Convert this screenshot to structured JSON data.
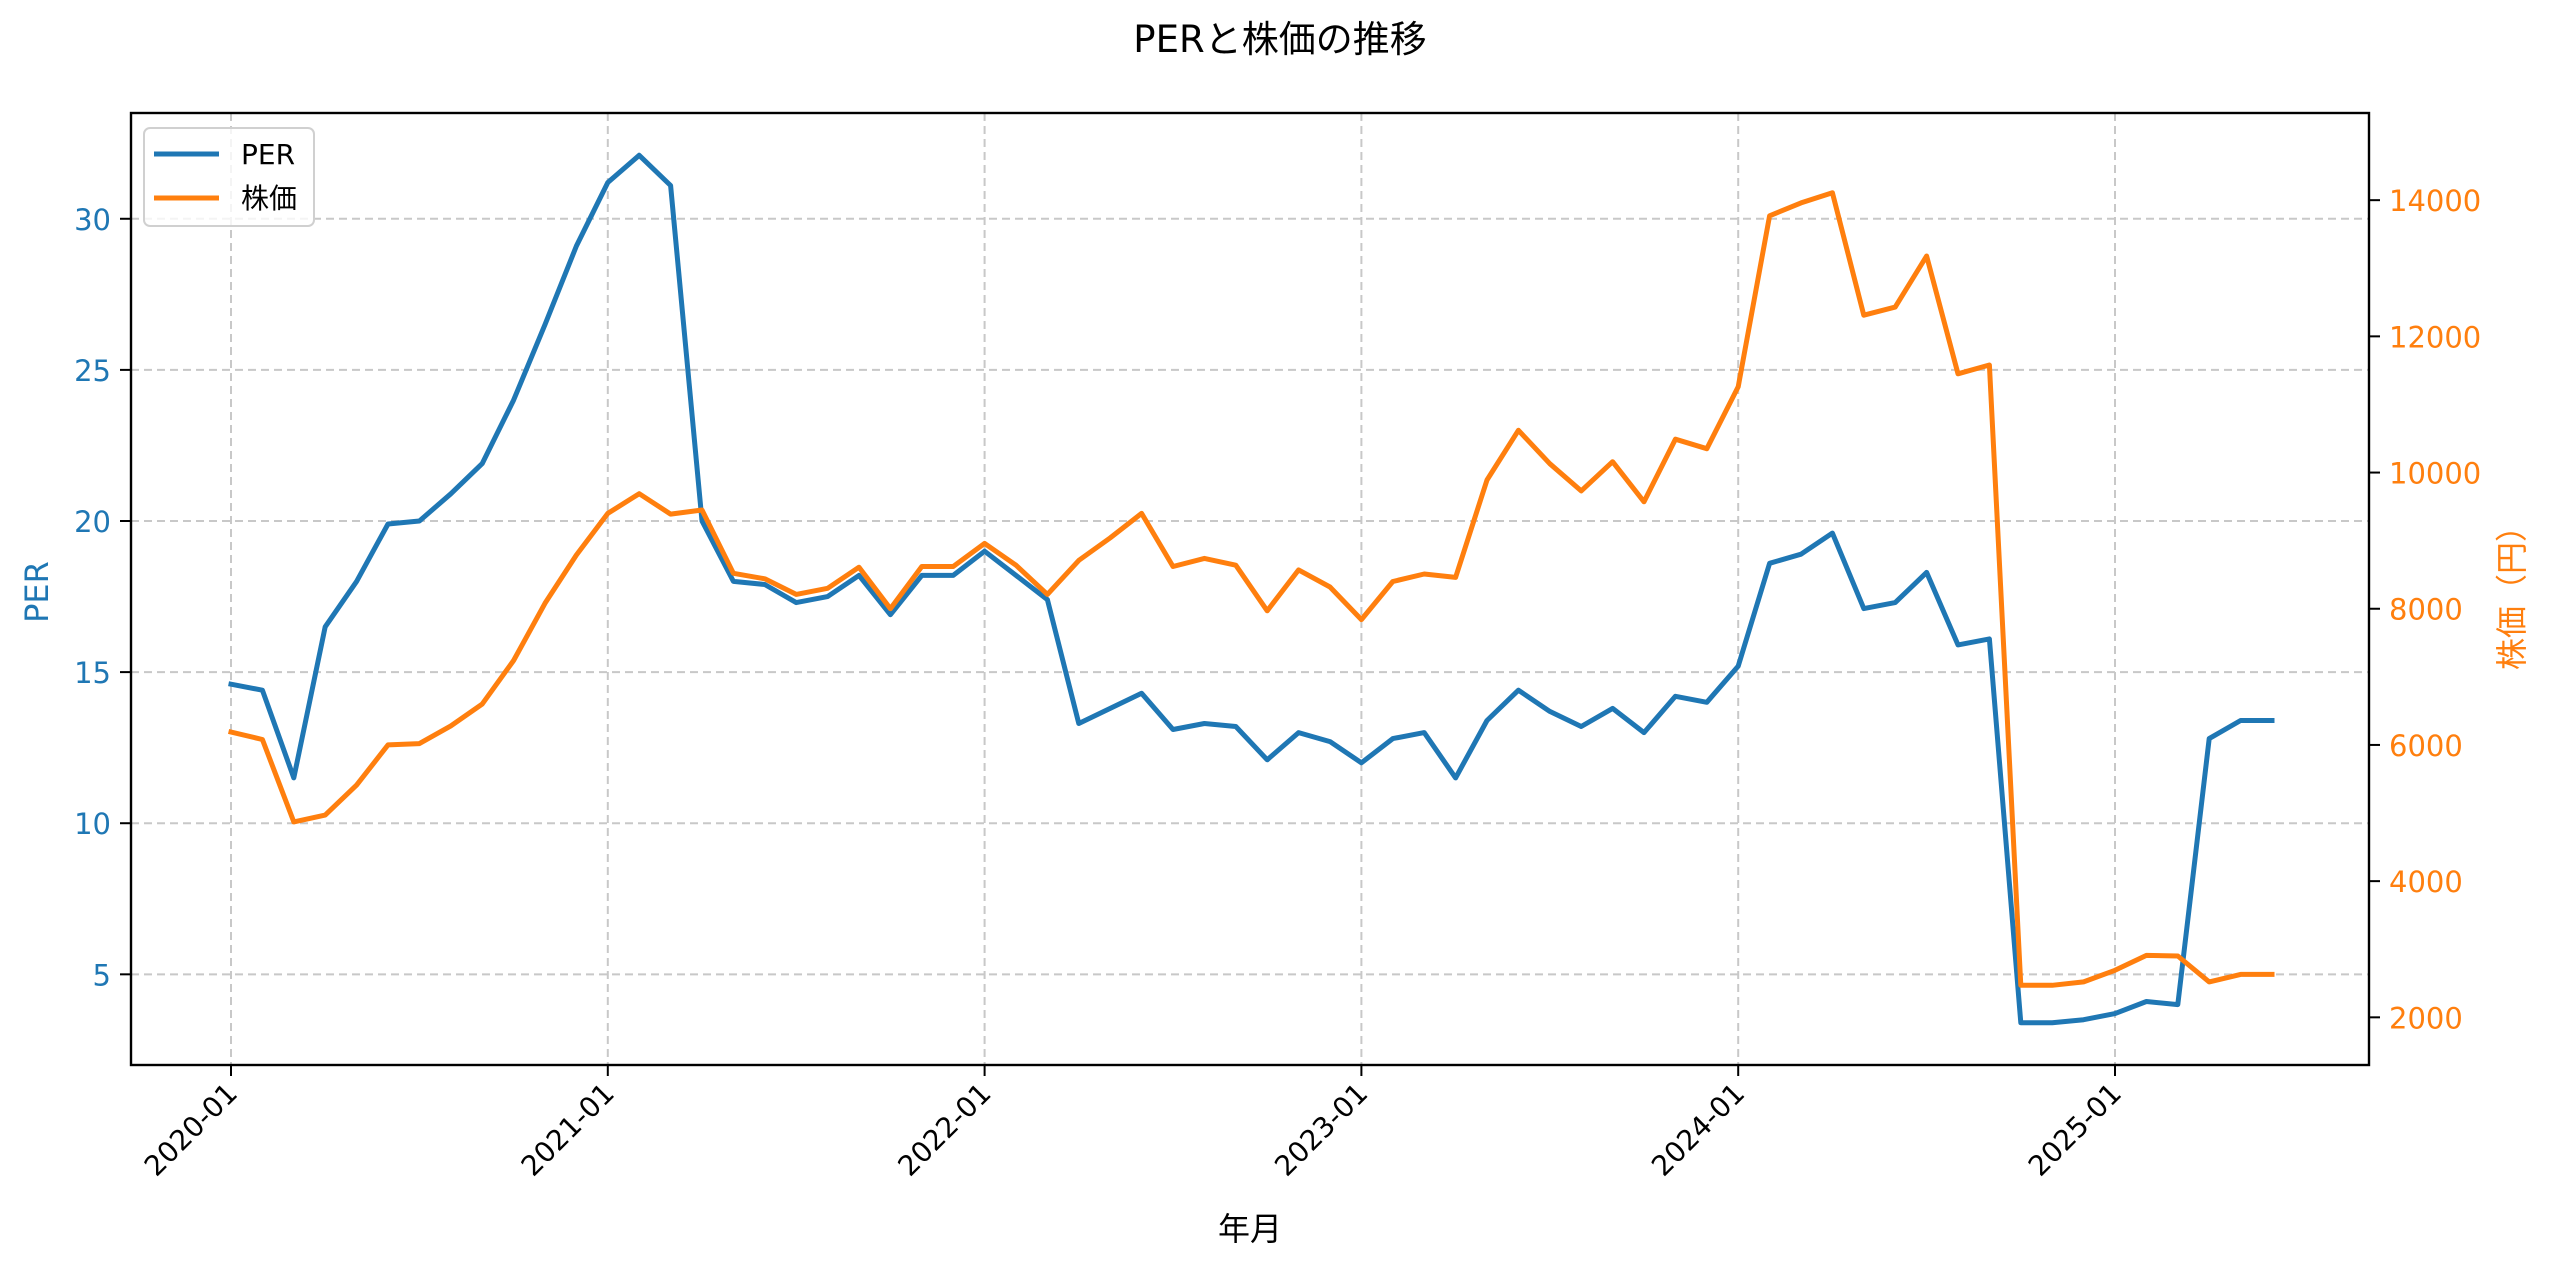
{
  "chart_data": {
    "type": "line",
    "title": "PERと株価の推移",
    "xlabel": "年月",
    "ylabel": "PER",
    "ylabel_right": "株価（円）",
    "x": [
      "2020-01",
      "2020-02",
      "2020-03",
      "2020-04",
      "2020-05",
      "2020-06",
      "2020-07",
      "2020-08",
      "2020-09",
      "2020-10",
      "2020-11",
      "2020-12",
      "2021-01",
      "2021-02",
      "2021-03",
      "2021-04",
      "2021-05",
      "2021-06",
      "2021-07",
      "2021-08",
      "2021-09",
      "2021-10",
      "2021-11",
      "2021-12",
      "2022-01",
      "2022-02",
      "2022-03",
      "2022-04",
      "2022-05",
      "2022-06",
      "2022-07",
      "2022-08",
      "2022-09",
      "2022-10",
      "2022-11",
      "2022-12",
      "2023-01",
      "2023-02",
      "2023-03",
      "2023-04",
      "2023-05",
      "2023-06",
      "2023-07",
      "2023-08",
      "2023-09",
      "2023-10",
      "2023-11",
      "2023-12",
      "2024-01",
      "2024-02",
      "2024-03",
      "2024-04",
      "2024-05",
      "2024-06",
      "2024-07",
      "2024-08",
      "2024-09",
      "2024-10",
      "2024-11",
      "2024-12",
      "2025-01",
      "2025-02",
      "2025-03",
      "2025-04",
      "2025-05",
      "2025-06"
    ],
    "x_tick_labels": [
      "2020-01",
      "2021-01",
      "2022-01",
      "2023-01",
      "2024-01",
      "2025-01"
    ],
    "x_tick_rotation": 45,
    "series": [
      {
        "name": "PER",
        "axis": "left",
        "color": "#1f77b4",
        "values": [
          14.6,
          14.4,
          11.5,
          16.5,
          18.0,
          19.9,
          20.0,
          20.9,
          21.9,
          24.0,
          26.5,
          29.1,
          31.2,
          32.1,
          31.1,
          20.0,
          18.0,
          17.9,
          17.3,
          17.5,
          18.2,
          16.9,
          18.2,
          18.2,
          19.0,
          18.2,
          17.4,
          13.3,
          13.8,
          14.3,
          13.1,
          13.3,
          13.2,
          12.1,
          13.0,
          12.7,
          12.0,
          12.8,
          13.0,
          11.5,
          13.4,
          14.4,
          13.7,
          13.2,
          13.8,
          13.0,
          14.2,
          14.0,
          15.2,
          18.6,
          18.9,
          19.6,
          17.1,
          17.3,
          18.3,
          15.9,
          16.1,
          3.4,
          3.4,
          3.5,
          3.7,
          4.1,
          4.0,
          12.8,
          13.4,
          13.4
        ]
      },
      {
        "name": "株価",
        "axis": "right",
        "color": "#ff7f0e",
        "values": [
          6190,
          6080,
          4870,
          4970,
          5410,
          6000,
          6020,
          6280,
          6600,
          7240,
          8080,
          8790,
          9400,
          9690,
          9390,
          9450,
          8520,
          8440,
          8210,
          8300,
          8610,
          8000,
          8620,
          8620,
          8960,
          8640,
          8210,
          8710,
          9040,
          9400,
          8620,
          8740,
          8640,
          7970,
          8570,
          8320,
          7840,
          8400,
          8510,
          8460,
          9890,
          10620,
          10130,
          9730,
          10160,
          9570,
          10490,
          10350,
          11260,
          13770,
          13960,
          14110,
          12310,
          12430,
          13180,
          11450,
          11580,
          2470,
          2470,
          2520,
          2690,
          2910,
          2900,
          2520,
          2630,
          2630
        ]
      }
    ],
    "ylim": [
      2.0,
      33.5
    ],
    "ylim_right": [
      1300,
      15280
    ],
    "yticks": [
      5,
      10,
      15,
      20,
      25,
      30
    ],
    "yticks_right": [
      2000,
      4000,
      6000,
      8000,
      10000,
      12000,
      14000
    ],
    "grid": true,
    "grid_style": "dashed",
    "legend": {
      "position": "upper left",
      "entries": [
        "PER",
        "株価"
      ]
    },
    "colors": {
      "left_axis": "#1f77b4",
      "right_axis": "#ff7f0e",
      "grid": "#c8c8c8",
      "text": "#000000"
    }
  }
}
